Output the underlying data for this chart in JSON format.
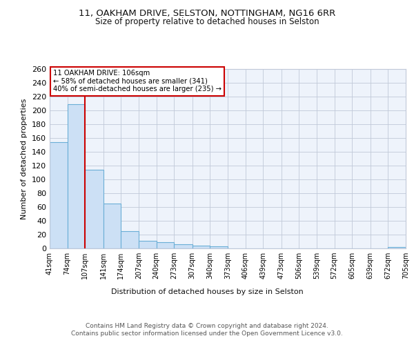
{
  "title1": "11, OAKHAM DRIVE, SELSTON, NOTTINGHAM, NG16 6RR",
  "title2": "Size of property relative to detached houses in Selston",
  "xlabel": "Distribution of detached houses by size in Selston",
  "ylabel": "Number of detached properties",
  "bar_color": "#cce0f5",
  "bar_edge_color": "#6aaed6",
  "background_color": "#eef3fb",
  "grid_color": "#c0c8d8",
  "annotation_line1": "11 OAKHAM DRIVE: 106sqm",
  "annotation_line2": "← 58% of detached houses are smaller (341)",
  "annotation_line3": "40% of semi-detached houses are larger (235) →",
  "property_line_x": 107,
  "property_line_color": "#cc0000",
  "footer": "Contains HM Land Registry data © Crown copyright and database right 2024.\nContains public sector information licensed under the Open Government Licence v3.0.",
  "bin_edges": [
    41,
    74,
    107,
    141,
    174,
    207,
    240,
    273,
    307,
    340,
    373,
    406,
    439,
    473,
    506,
    539,
    572,
    605,
    639,
    672,
    705
  ],
  "bar_heights": [
    154,
    209,
    114,
    65,
    25,
    11,
    9,
    6,
    4,
    3,
    0,
    0,
    0,
    0,
    0,
    0,
    0,
    0,
    0,
    2
  ],
  "ylim": [
    0,
    260
  ],
  "yticks": [
    0,
    20,
    40,
    60,
    80,
    100,
    120,
    140,
    160,
    180,
    200,
    220,
    240,
    260
  ],
  "title1_fontsize": 9.5,
  "title2_fontsize": 8.5,
  "footer_fontsize": 6.5
}
